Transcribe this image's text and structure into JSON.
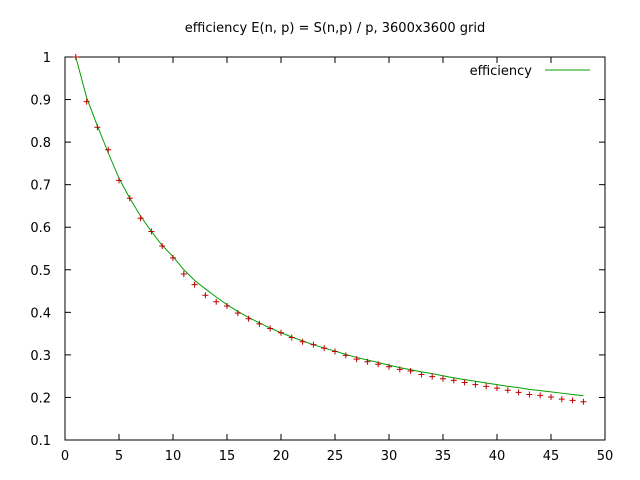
{
  "chart_data": {
    "type": "line",
    "title": "efficiency E(n, p) = S(n,p) / p, 3600x3600 grid",
    "xlabel": "",
    "ylabel": "",
    "xlim": [
      0,
      50
    ],
    "ylim": [
      0.1,
      1
    ],
    "xticks": [
      0,
      5,
      10,
      15,
      20,
      25,
      30,
      35,
      40,
      45,
      50
    ],
    "yticks": [
      0.1,
      0.2,
      0.3,
      0.4,
      0.5,
      0.6,
      0.7,
      0.8,
      0.9,
      1
    ],
    "grid": false,
    "legend": "top-right",
    "x": [
      1,
      2,
      3,
      4,
      5,
      6,
      7,
      8,
      9,
      10,
      11,
      12,
      13,
      14,
      15,
      16,
      17,
      18,
      19,
      20,
      21,
      22,
      23,
      24,
      25,
      26,
      27,
      28,
      29,
      30,
      31,
      32,
      33,
      34,
      35,
      36,
      37,
      38,
      39,
      40,
      41,
      42,
      43,
      44,
      45,
      46,
      47,
      48
    ],
    "series": [
      {
        "name": "efficiency",
        "style": "line",
        "color": "#00a000",
        "values": [
          1.0,
          0.905,
          0.838,
          0.775,
          0.715,
          0.668,
          0.626,
          0.59,
          0.557,
          0.531,
          0.5,
          0.475,
          0.455,
          0.436,
          0.418,
          0.402,
          0.388,
          0.375,
          0.363,
          0.352,
          0.342,
          0.333,
          0.324,
          0.316,
          0.309,
          0.301,
          0.294,
          0.288,
          0.282,
          0.276,
          0.27,
          0.265,
          0.26,
          0.256,
          0.251,
          0.246,
          0.242,
          0.238,
          0.234,
          0.23,
          0.226,
          0.223,
          0.219,
          0.216,
          0.213,
          0.21,
          0.207,
          0.204
        ]
      },
      {
        "style": "points",
        "color": "#c00000",
        "values": [
          1.0,
          0.895,
          0.835,
          0.782,
          0.71,
          0.668,
          0.621,
          0.59,
          0.556,
          0.528,
          0.49,
          0.465,
          0.44,
          0.425,
          0.415,
          0.398,
          0.385,
          0.373,
          0.362,
          0.352,
          0.341,
          0.331,
          0.324,
          0.316,
          0.308,
          0.299,
          0.29,
          0.284,
          0.278,
          0.272,
          0.266,
          0.262,
          0.254,
          0.249,
          0.244,
          0.24,
          0.235,
          0.23,
          0.226,
          0.222,
          0.217,
          0.212,
          0.207,
          0.205,
          0.201,
          0.196,
          0.193,
          0.19
        ]
      }
    ]
  }
}
